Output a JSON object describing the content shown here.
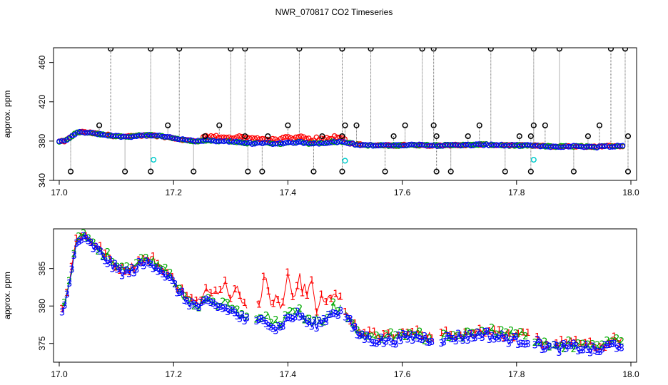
{
  "title": "NWR_070817  CO2 Timeseries",
  "chart_data": [
    {
      "type": "scatter",
      "title": "NWR_070817  CO2 Timeseries",
      "xlabel": "",
      "ylabel": "approx. ppm",
      "xlim": [
        17.0,
        18.0
      ],
      "ylim": [
        340,
        475
      ],
      "xticks": [
        "17.0",
        "17.2",
        "17.4",
        "17.6",
        "17.8",
        "18.0"
      ],
      "yticks": [
        "340",
        "380",
        "420",
        "460"
      ],
      "grid": false,
      "colors": {
        "s1": "#ff0000",
        "s2": "#00aa00",
        "s3": "#0000ff",
        "flag": "#000000",
        "cal": "#00cccc"
      },
      "outliers_high": [
        17.09,
        17.16,
        17.21,
        17.3,
        17.325,
        17.42,
        17.495,
        17.545,
        17.635,
        17.655,
        17.755,
        17.83,
        17.875,
        17.965,
        17.99
      ],
      "outliers_low": [
        17.02,
        17.115,
        17.16,
        17.235,
        17.33,
        17.355,
        17.445,
        17.495,
        17.57,
        17.66,
        17.685,
        17.78,
        17.825,
        17.9,
        17.995
      ],
      "outliers_mid": [
        [
          17.07,
          396
        ],
        [
          17.19,
          396
        ],
        [
          17.255,
          385
        ],
        [
          17.28,
          396
        ],
        [
          17.325,
          385
        ],
        [
          17.365,
          385
        ],
        [
          17.4,
          396
        ],
        [
          17.46,
          385
        ],
        [
          17.495,
          385
        ],
        [
          17.5,
          396
        ],
        [
          17.52,
          396
        ],
        [
          17.585,
          385
        ],
        [
          17.605,
          396
        ],
        [
          17.655,
          396
        ],
        [
          17.66,
          385
        ],
        [
          17.715,
          385
        ],
        [
          17.735,
          396
        ],
        [
          17.805,
          385
        ],
        [
          17.825,
          385
        ],
        [
          17.83,
          396
        ],
        [
          17.85,
          396
        ],
        [
          17.925,
          385
        ],
        [
          17.945,
          396
        ],
        [
          17.995,
          385
        ]
      ],
      "cal_points": [
        [
          17.165,
          361
        ],
        [
          17.5,
          360
        ],
        [
          17.83,
          361
        ]
      ]
    },
    {
      "type": "line",
      "title": "",
      "xlabel": "",
      "ylabel": "approx. ppm",
      "xlim": [
        17.0,
        18.0
      ],
      "ylim": [
        372.5,
        390.3
      ],
      "xticks": [
        "17.0",
        "17.2",
        "17.4",
        "17.6",
        "17.8",
        "18.0"
      ],
      "yticks": [
        "375",
        "380",
        "385"
      ],
      "grid": false,
      "series": [
        {
          "name": "1",
          "color": "#ff0000"
        },
        {
          "name": "2",
          "color": "#00aa00"
        },
        {
          "name": "3",
          "color": "#0000ff"
        }
      ],
      "base_x": [
        17.0,
        17.01,
        17.02,
        17.03,
        17.04,
        17.06,
        17.08,
        17.1,
        17.12,
        17.14,
        17.16,
        17.18,
        17.2,
        17.22,
        17.24,
        17.26,
        17.28,
        17.3,
        17.32,
        17.34,
        17.36,
        17.38,
        17.4,
        17.42,
        17.44,
        17.46,
        17.48,
        17.5,
        17.52,
        17.54,
        17.56,
        17.58,
        17.6,
        17.62,
        17.64,
        17.66,
        17.68,
        17.7,
        17.72,
        17.74,
        17.76,
        17.78,
        17.8,
        17.82,
        17.84,
        17.86,
        17.88,
        17.9,
        17.92,
        17.94,
        17.96,
        17.98
      ],
      "base_y": [
        379.5,
        380.0,
        384.0,
        388.5,
        389.2,
        388.0,
        386.5,
        385.0,
        384.5,
        385.5,
        386.0,
        384.8,
        383.0,
        381.0,
        380.0,
        380.5,
        380.0,
        379.5,
        378.5,
        377.5,
        378.5,
        377.0,
        378.5,
        379.0,
        377.5,
        378.0,
        379.5,
        379.0,
        376.5,
        375.8,
        375.5,
        375.5,
        375.8,
        376.0,
        375.8,
        375.6,
        375.8,
        376.0,
        376.0,
        376.5,
        376.0,
        375.8,
        375.5,
        375.5,
        375.0,
        374.5,
        374.5,
        374.6,
        374.5,
        374.0,
        374.8,
        375.0
      ],
      "s1_offsets": [
        [
          17.26,
          0.8
        ],
        [
          17.29,
          4.0
        ],
        [
          17.31,
          3.5
        ],
        [
          17.34,
          5.2
        ],
        [
          17.36,
          6.5
        ],
        [
          17.38,
          5.0
        ],
        [
          17.4,
          6.0
        ],
        [
          17.42,
          4.8
        ],
        [
          17.43,
          4.5
        ],
        [
          17.44,
          6.5
        ],
        [
          17.46,
          3.0
        ],
        [
          17.48,
          2.0
        ]
      ]
    }
  ]
}
